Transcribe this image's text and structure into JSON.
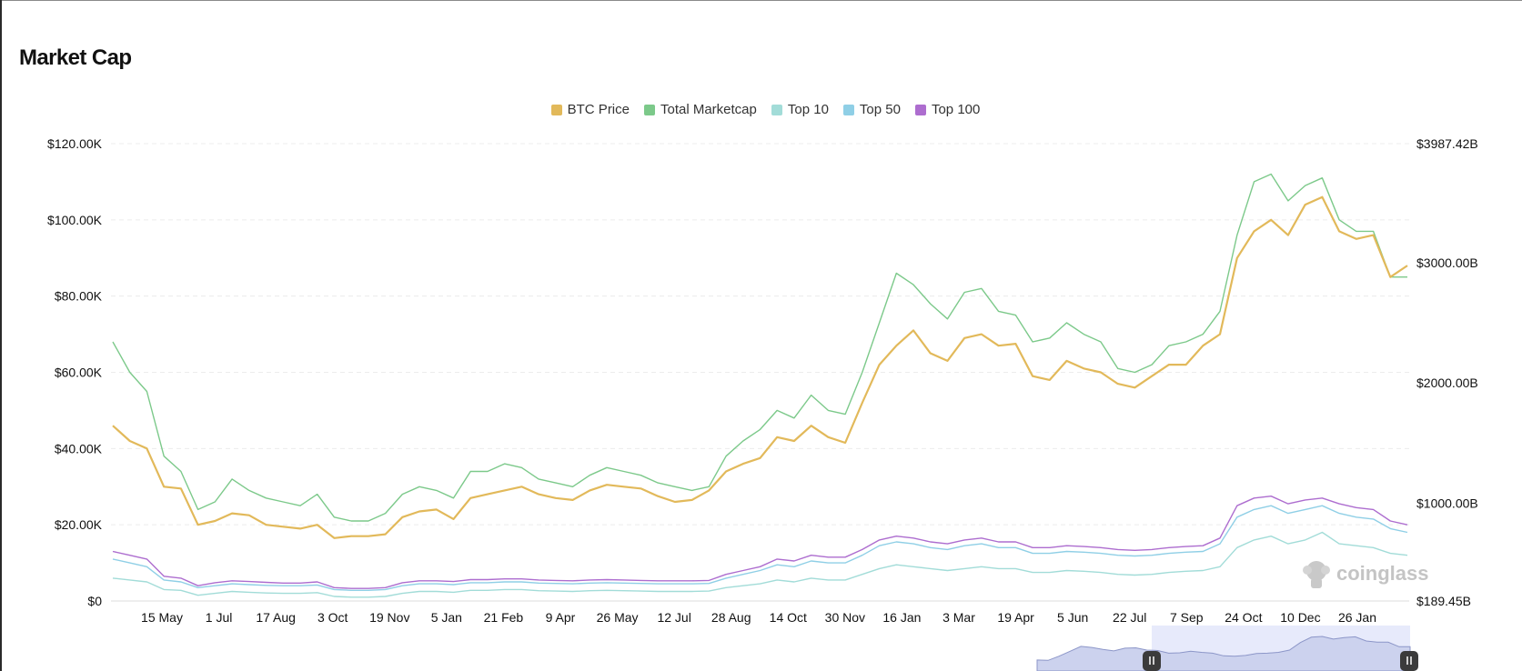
{
  "page": {
    "title": "Market Cap"
  },
  "watermark": {
    "text": "coinglass"
  },
  "chart_data": {
    "type": "line",
    "title": "Market Cap",
    "legend_position": "top-center",
    "grid": true,
    "x_tick_labels": [
      "15 May",
      "1 Jul",
      "17 Aug",
      "3 Oct",
      "19 Nov",
      "5 Jan",
      "21 Feb",
      "9 Apr",
      "26 May",
      "12 Jul",
      "28 Aug",
      "14 Oct",
      "30 Nov",
      "16 Jan",
      "3 Mar",
      "19 Apr",
      "5 Jun",
      "22 Jul",
      "7 Sep",
      "24 Oct",
      "10 Dec",
      "26 Jan"
    ],
    "y_left": {
      "ticks": [
        "$0",
        "$20.00K",
        "$40.00K",
        "$60.00K",
        "$80.00K",
        "$100.00K",
        "$120.00K"
      ],
      "min": 0,
      "max": 120000
    },
    "y_right": {
      "ticks": [
        "$189.45B",
        "$1000.00B",
        "$2000.00B",
        "$3000.00B",
        "$3987.42B"
      ],
      "min": 189.45,
      "max": 3987.42
    },
    "series": [
      {
        "name": "BTC Price",
        "axis": "left",
        "color": "#e2b95a",
        "values": [
          46000,
          42000,
          40000,
          30000,
          29500,
          20000,
          21000,
          23000,
          22500,
          20000,
          19500,
          19000,
          20000,
          16500,
          17000,
          17000,
          17500,
          22000,
          23500,
          24000,
          21500,
          27000,
          28000,
          29000,
          30000,
          28000,
          27000,
          26500,
          29000,
          30500,
          30000,
          29500,
          27500,
          26000,
          26500,
          29000,
          34000,
          36000,
          37500,
          43000,
          42000,
          46000,
          43000,
          41500,
          52000,
          62000,
          67000,
          71000,
          65000,
          63000,
          69000,
          70000,
          67000,
          67500,
          59000,
          58000,
          63000,
          61000,
          60000,
          57000,
          56000,
          59000,
          62000,
          62000,
          67000,
          70000,
          90000,
          97000,
          100000,
          96000,
          104000,
          106000,
          97000,
          95000,
          96000,
          85000,
          88000
        ]
      },
      {
        "name": "Total Marketcap",
        "axis": "left",
        "color": "#7cc98a",
        "values": [
          68000,
          60000,
          55000,
          38000,
          34000,
          24000,
          26000,
          32000,
          29000,
          27000,
          26000,
          25000,
          28000,
          22000,
          21000,
          21000,
          23000,
          28000,
          30000,
          29000,
          27000,
          34000,
          34000,
          36000,
          35000,
          32000,
          31000,
          30000,
          33000,
          35000,
          34000,
          33000,
          31000,
          30000,
          29000,
          30000,
          38000,
          42000,
          45000,
          50000,
          48000,
          54000,
          50000,
          49000,
          60000,
          73000,
          86000,
          83000,
          78000,
          74000,
          81000,
          82000,
          76000,
          75000,
          68000,
          69000,
          73000,
          70000,
          68000,
          61000,
          60000,
          62000,
          67000,
          68000,
          70000,
          76000,
          96000,
          110000,
          112000,
          105000,
          109000,
          111000,
          100000,
          97000,
          97000,
          85000,
          85000
        ]
      },
      {
        "name": "Top 10",
        "axis": "left",
        "color": "#a2dcd8",
        "values": [
          6000,
          5500,
          5000,
          3000,
          2800,
          1500,
          2000,
          2500,
          2300,
          2100,
          2000,
          2000,
          2200,
          1200,
          1000,
          1000,
          1200,
          2000,
          2500,
          2500,
          2300,
          2800,
          2800,
          3000,
          3000,
          2700,
          2600,
          2500,
          2700,
          2800,
          2700,
          2600,
          2500,
          2500,
          2500,
          2600,
          3500,
          4000,
          4500,
          5500,
          5000,
          6000,
          5500,
          5500,
          7000,
          8500,
          9500,
          9000,
          8500,
          8000,
          8500,
          9000,
          8500,
          8500,
          7500,
          7500,
          8000,
          7800,
          7500,
          7000,
          6800,
          7000,
          7500,
          7800,
          8000,
          9000,
          14000,
          16000,
          17000,
          15000,
          16000,
          18000,
          15000,
          14500,
          14000,
          12500,
          12000
        ]
      },
      {
        "name": "Top 50",
        "axis": "left",
        "color": "#8fcfe6",
        "values": [
          11000,
          10000,
          9000,
          5500,
          5000,
          3500,
          4000,
          4500,
          4300,
          4100,
          4000,
          4000,
          4200,
          3000,
          2800,
          2800,
          3000,
          4000,
          4500,
          4500,
          4300,
          4800,
          4800,
          5000,
          5000,
          4700,
          4600,
          4500,
          4700,
          4800,
          4700,
          4600,
          4500,
          4500,
          4500,
          4600,
          6000,
          7000,
          8000,
          9500,
          9000,
          10500,
          10000,
          10000,
          12000,
          14500,
          15500,
          15000,
          14000,
          13500,
          14500,
          15000,
          14000,
          14000,
          12500,
          12500,
          13000,
          12800,
          12500,
          12000,
          11800,
          12000,
          12500,
          12800,
          13000,
          15000,
          22000,
          24000,
          25000,
          23000,
          24000,
          25000,
          23000,
          22000,
          21500,
          19000,
          18000
        ]
      },
      {
        "name": "Top 100",
        "axis": "left",
        "color": "#ad6dcf",
        "values": [
          13000,
          12000,
          11000,
          6500,
          6000,
          4000,
          4800,
          5300,
          5100,
          4900,
          4700,
          4700,
          5000,
          3500,
          3300,
          3300,
          3500,
          4800,
          5300,
          5300,
          5100,
          5600,
          5600,
          5800,
          5800,
          5500,
          5400,
          5300,
          5500,
          5600,
          5500,
          5400,
          5300,
          5300,
          5300,
          5400,
          7000,
          8000,
          9000,
          11000,
          10500,
          12000,
          11500,
          11500,
          13500,
          16000,
          17000,
          16500,
          15500,
          15000,
          16000,
          16500,
          15500,
          15500,
          14000,
          14000,
          14500,
          14300,
          14000,
          13500,
          13300,
          13500,
          14000,
          14300,
          14500,
          16500,
          25000,
          27000,
          27500,
          25500,
          26500,
          27000,
          25500,
          24500,
          24000,
          21000,
          20000
        ]
      }
    ]
  }
}
